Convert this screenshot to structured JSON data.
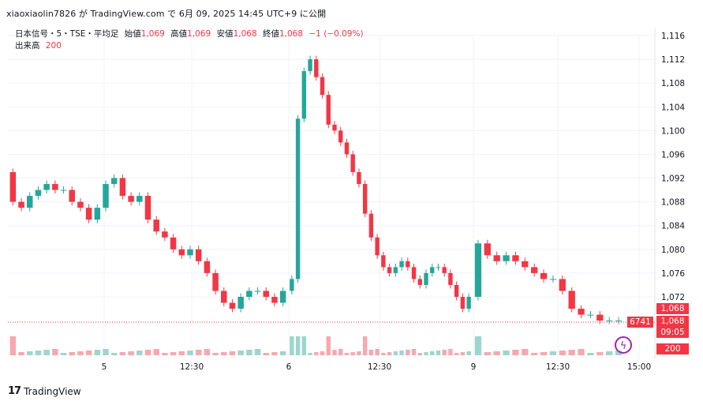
{
  "header": "xiaoxiaolin7826 が TradingView.com で 6月 09, 2025 14:45 UTC+9 に公開",
  "legend": {
    "symbol": "日本信号・5・TSE・平均足",
    "open_label": "始値",
    "open": "1,069",
    "high_label": "高値",
    "high": "1,069",
    "low_label": "安値",
    "low": "1,068",
    "close_label": "終値",
    "close": "1,068",
    "change": "−1 (−0.09%)",
    "volume_label": "出来高",
    "volume": "200"
  },
  "price_tags": {
    "price": "1,068",
    "price2": "1,068",
    "countdown": "09:05",
    "volume": "200",
    "id": "6741"
  },
  "footer": {
    "logo": "17",
    "brand": "TradingView"
  },
  "colors": {
    "up": "#26a69a",
    "down": "#f23645",
    "up_vol": "#9dd6cf",
    "down_vol": "#f7a8ae",
    "grid": "#f0f3fa"
  },
  "chart_data": {
    "type": "candlestick",
    "y_ticks": [
      "1,116",
      "1,112",
      "1,108",
      "1,104",
      "1,100",
      "1,096",
      "1,092",
      "1,088",
      "1,084",
      "1,080",
      "1,076",
      "1,072"
    ],
    "x_ticks": [
      "5",
      "12:30",
      "6",
      "12:30",
      "9",
      "12:30",
      "15:00"
    ],
    "ylim": [
      1068,
      1116
    ],
    "last_price": 1068,
    "days": [
      {
        "label": "5",
        "points": [
          [
            1093,
            1088
          ],
          [
            1088,
            1087
          ],
          [
            1087,
            1089
          ],
          [
            1089,
            1090
          ],
          [
            1090,
            1091
          ],
          [
            1091,
            1090
          ],
          [
            1090,
            1090
          ],
          [
            1090,
            1088
          ],
          [
            1088,
            1087
          ],
          [
            1087,
            1085
          ],
          [
            1085,
            1087
          ],
          [
            1087,
            1091
          ],
          [
            1091,
            1092
          ],
          [
            1092,
            1089
          ],
          [
            1089,
            1088
          ],
          [
            1088,
            1089
          ],
          [
            1089,
            1085
          ],
          [
            1085,
            1083
          ],
          [
            1083,
            1082
          ],
          [
            1082,
            1080
          ],
          [
            1080,
            1079
          ],
          [
            1079,
            1080
          ],
          [
            1080,
            1078
          ],
          [
            1078,
            1076
          ],
          [
            1076,
            1073
          ],
          [
            1073,
            1071
          ],
          [
            1071,
            1070
          ],
          [
            1070,
            1072
          ],
          [
            1072,
            1073
          ],
          [
            1073,
            1073
          ],
          [
            1073,
            1072
          ],
          [
            1072,
            1071
          ],
          [
            1071,
            1073
          ]
        ]
      },
      {
        "label": "6",
        "points": [
          [
            1073,
            1075
          ],
          [
            1075,
            1102
          ],
          [
            1102,
            1110
          ],
          [
            1110,
            1112
          ],
          [
            1112,
            1109
          ],
          [
            1109,
            1106
          ],
          [
            1106,
            1101
          ],
          [
            1101,
            1100
          ],
          [
            1100,
            1098
          ],
          [
            1098,
            1096
          ],
          [
            1096,
            1093
          ],
          [
            1093,
            1091
          ],
          [
            1091,
            1086
          ],
          [
            1086,
            1082
          ],
          [
            1082,
            1079
          ],
          [
            1079,
            1077
          ],
          [
            1077,
            1076
          ],
          [
            1076,
            1077
          ],
          [
            1077,
            1078
          ],
          [
            1078,
            1077
          ],
          [
            1077,
            1075
          ],
          [
            1075,
            1074
          ],
          [
            1074,
            1076
          ],
          [
            1076,
            1077
          ],
          [
            1077,
            1077
          ],
          [
            1077,
            1076
          ],
          [
            1076,
            1074
          ],
          [
            1074,
            1072
          ],
          [
            1072,
            1070
          ],
          [
            1070,
            1072
          ]
        ]
      },
      {
        "label": "9",
        "points": [
          [
            1072,
            1081
          ],
          [
            1081,
            1079
          ],
          [
            1079,
            1078
          ],
          [
            1078,
            1079
          ],
          [
            1079,
            1078
          ],
          [
            1078,
            1077
          ],
          [
            1077,
            1076
          ],
          [
            1076,
            1075
          ],
          [
            1075,
            1075
          ],
          [
            1075,
            1073
          ],
          [
            1073,
            1070
          ],
          [
            1070,
            1069
          ],
          [
            1069,
            1069
          ],
          [
            1069,
            1068
          ],
          [
            1068,
            1068
          ],
          [
            1068,
            1068
          ]
        ]
      }
    ]
  }
}
